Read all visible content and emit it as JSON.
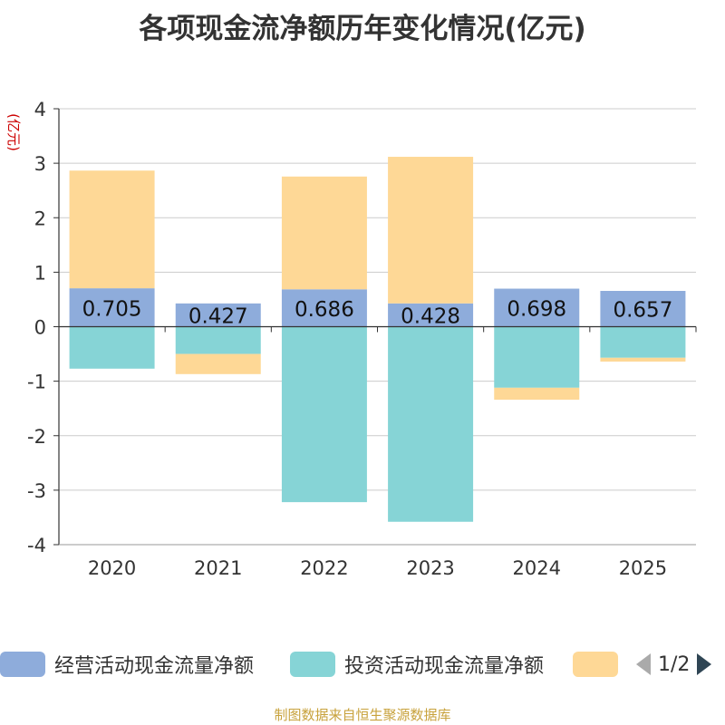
{
  "title": "各项现金流净额历年变化情况(亿元)",
  "footer": "制图数据来自恒生聚源数据库",
  "legend_pager": {
    "text": "1/2"
  },
  "chart_data": {
    "type": "bar",
    "stacked": true,
    "ylabel": "(亿元)",
    "ylim": [
      -4,
      4
    ],
    "yticks": [
      4,
      3,
      2,
      1,
      0,
      -1,
      -2,
      -3,
      -4
    ],
    "categories": [
      "2020",
      "2021",
      "2022",
      "2023",
      "2024",
      "2025"
    ],
    "grid": true,
    "legend_position": "bottom",
    "series": [
      {
        "name": "经营活动现金流量净额",
        "color": "#8eacdb",
        "values": [
          0.705,
          0.427,
          0.686,
          0.428,
          0.698,
          0.657
        ],
        "labels_shown": true
      },
      {
        "name": "投资活动现金流量净额",
        "color": "#86d4d6",
        "values": [
          -0.77,
          -0.5,
          -3.22,
          -3.58,
          -1.12,
          -0.57
        ]
      },
      {
        "name": "",
        "color": "#fed896",
        "values": [
          2.16,
          -0.37,
          2.07,
          2.69,
          -0.22,
          -0.07
        ]
      }
    ]
  }
}
